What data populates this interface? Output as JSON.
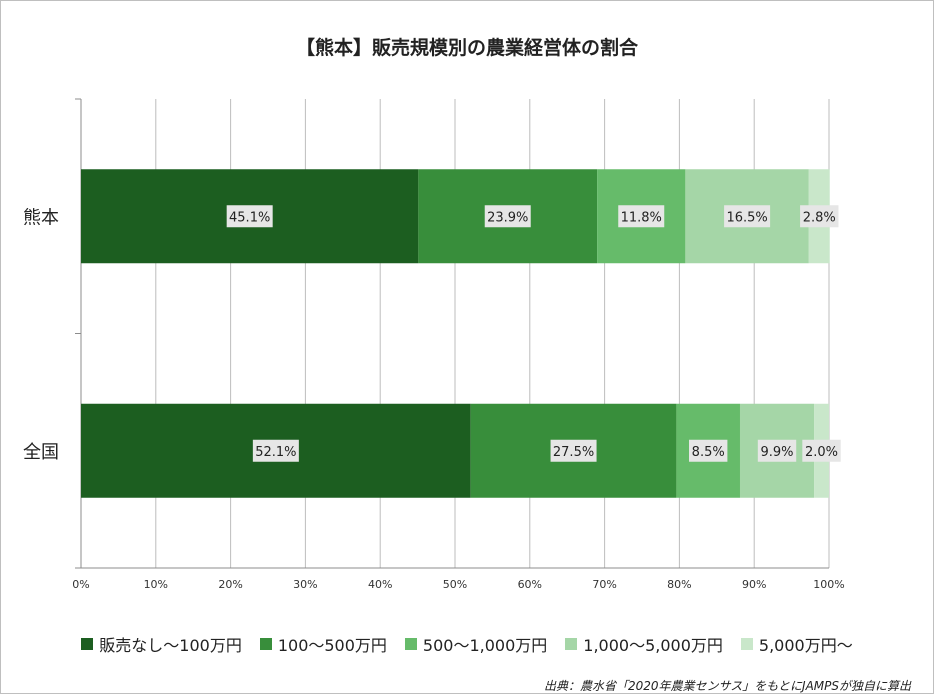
{
  "chart_data": {
    "type": "bar",
    "orientation": "horizontal",
    "stacked": "percent",
    "title": "【熊本】販売規模別の農業経営体の割合",
    "categories": [
      "熊本",
      "全国"
    ],
    "series": [
      {
        "name": "販売なし～100万円",
        "color": "#1c5e20",
        "values": [
          45.1,
          52.1
        ]
      },
      {
        "name": "100～500万円",
        "color": "#388e3b",
        "values": [
          23.9,
          27.5
        ]
      },
      {
        "name": "500～1,000万円",
        "color": "#66bb6a",
        "values": [
          11.8,
          8.5
        ]
      },
      {
        "name": "1,000～5,000万円",
        "color": "#a5d6a7",
        "values": [
          16.5,
          9.9
        ]
      },
      {
        "name": "5,000万円～",
        "color": "#c9e7ca",
        "values": [
          2.8,
          2.0
        ]
      }
    ],
    "data_labels": [
      [
        "45.1%",
        "23.9%",
        "11.8%",
        "16.5%",
        "2.8%"
      ],
      [
        "52.1%",
        "27.5%",
        "8.5%",
        "9.9%",
        "2.0%"
      ]
    ],
    "x_ticks": [
      "0%",
      "10%",
      "20%",
      "30%",
      "40%",
      "50%",
      "60%",
      "70%",
      "80%",
      "90%",
      "100%"
    ],
    "xlim": [
      0,
      100
    ],
    "grid": true,
    "legend_position": "bottom"
  },
  "source_note": "出典：農水省「2020年農業センサス」をもとにJAMPSが独自に算出"
}
